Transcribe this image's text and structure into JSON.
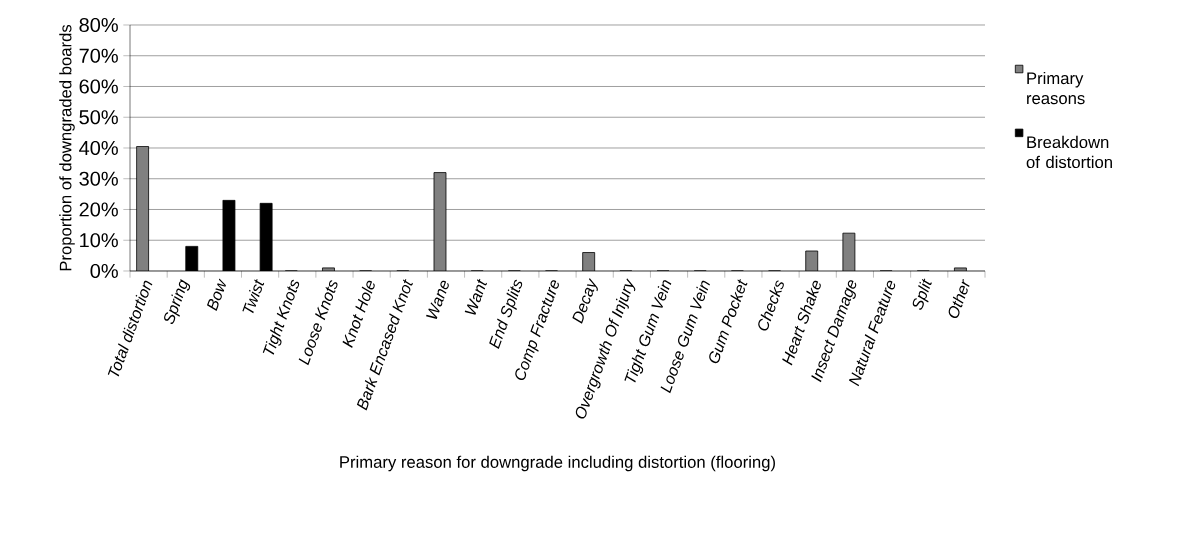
{
  "chart_data": {
    "type": "bar",
    "xlabel": "Primary reason for downgrade including distortion (flooring)",
    "ylabel": "Proportion of downgraded boards",
    "categories": [
      "Total distortion",
      "Spring",
      "Bow",
      "Twist",
      "Tight Knots",
      "Loose Knots",
      "Knot Hole",
      "Bark Encased Knot",
      "Wane",
      "Want",
      "End Splits",
      "Comp Fracture",
      "Decay",
      "Overgrowth Of Injury",
      "Tight Gum Vein",
      "Loose Gum Vein",
      "Gum Pocket",
      "Checks",
      "Heart Shake",
      "Insect Damage",
      "Natural Feature",
      "Split",
      "Other"
    ],
    "series": [
      {
        "name": "Primary reasons",
        "color": "#808080",
        "values": [
          40.5,
          null,
          null,
          null,
          0,
          1,
          0,
          0,
          32,
          0,
          0,
          0,
          6,
          0,
          0,
          0,
          0,
          0,
          6.5,
          12.3,
          0,
          0,
          1
        ]
      },
      {
        "name": "Breakdown of distortion",
        "color": "#000000",
        "values": [
          null,
          8,
          23,
          22,
          null,
          null,
          null,
          null,
          null,
          null,
          null,
          null,
          null,
          null,
          null,
          null,
          null,
          null,
          null,
          null,
          null,
          null,
          null
        ]
      }
    ],
    "ylim": [
      0,
      80
    ],
    "yticks": [
      {
        "value": 0,
        "label": "0%"
      },
      {
        "value": 10,
        "label": "10%"
      },
      {
        "value": 20,
        "label": "20%"
      },
      {
        "value": 30,
        "label": "30%"
      },
      {
        "value": 40,
        "label": "40%"
      },
      {
        "value": 50,
        "label": "50%"
      },
      {
        "value": 60,
        "label": "60%"
      },
      {
        "value": 70,
        "label": "70%"
      },
      {
        "value": 80,
        "label": "80%"
      }
    ],
    "grid": "y",
    "legend": "right"
  }
}
